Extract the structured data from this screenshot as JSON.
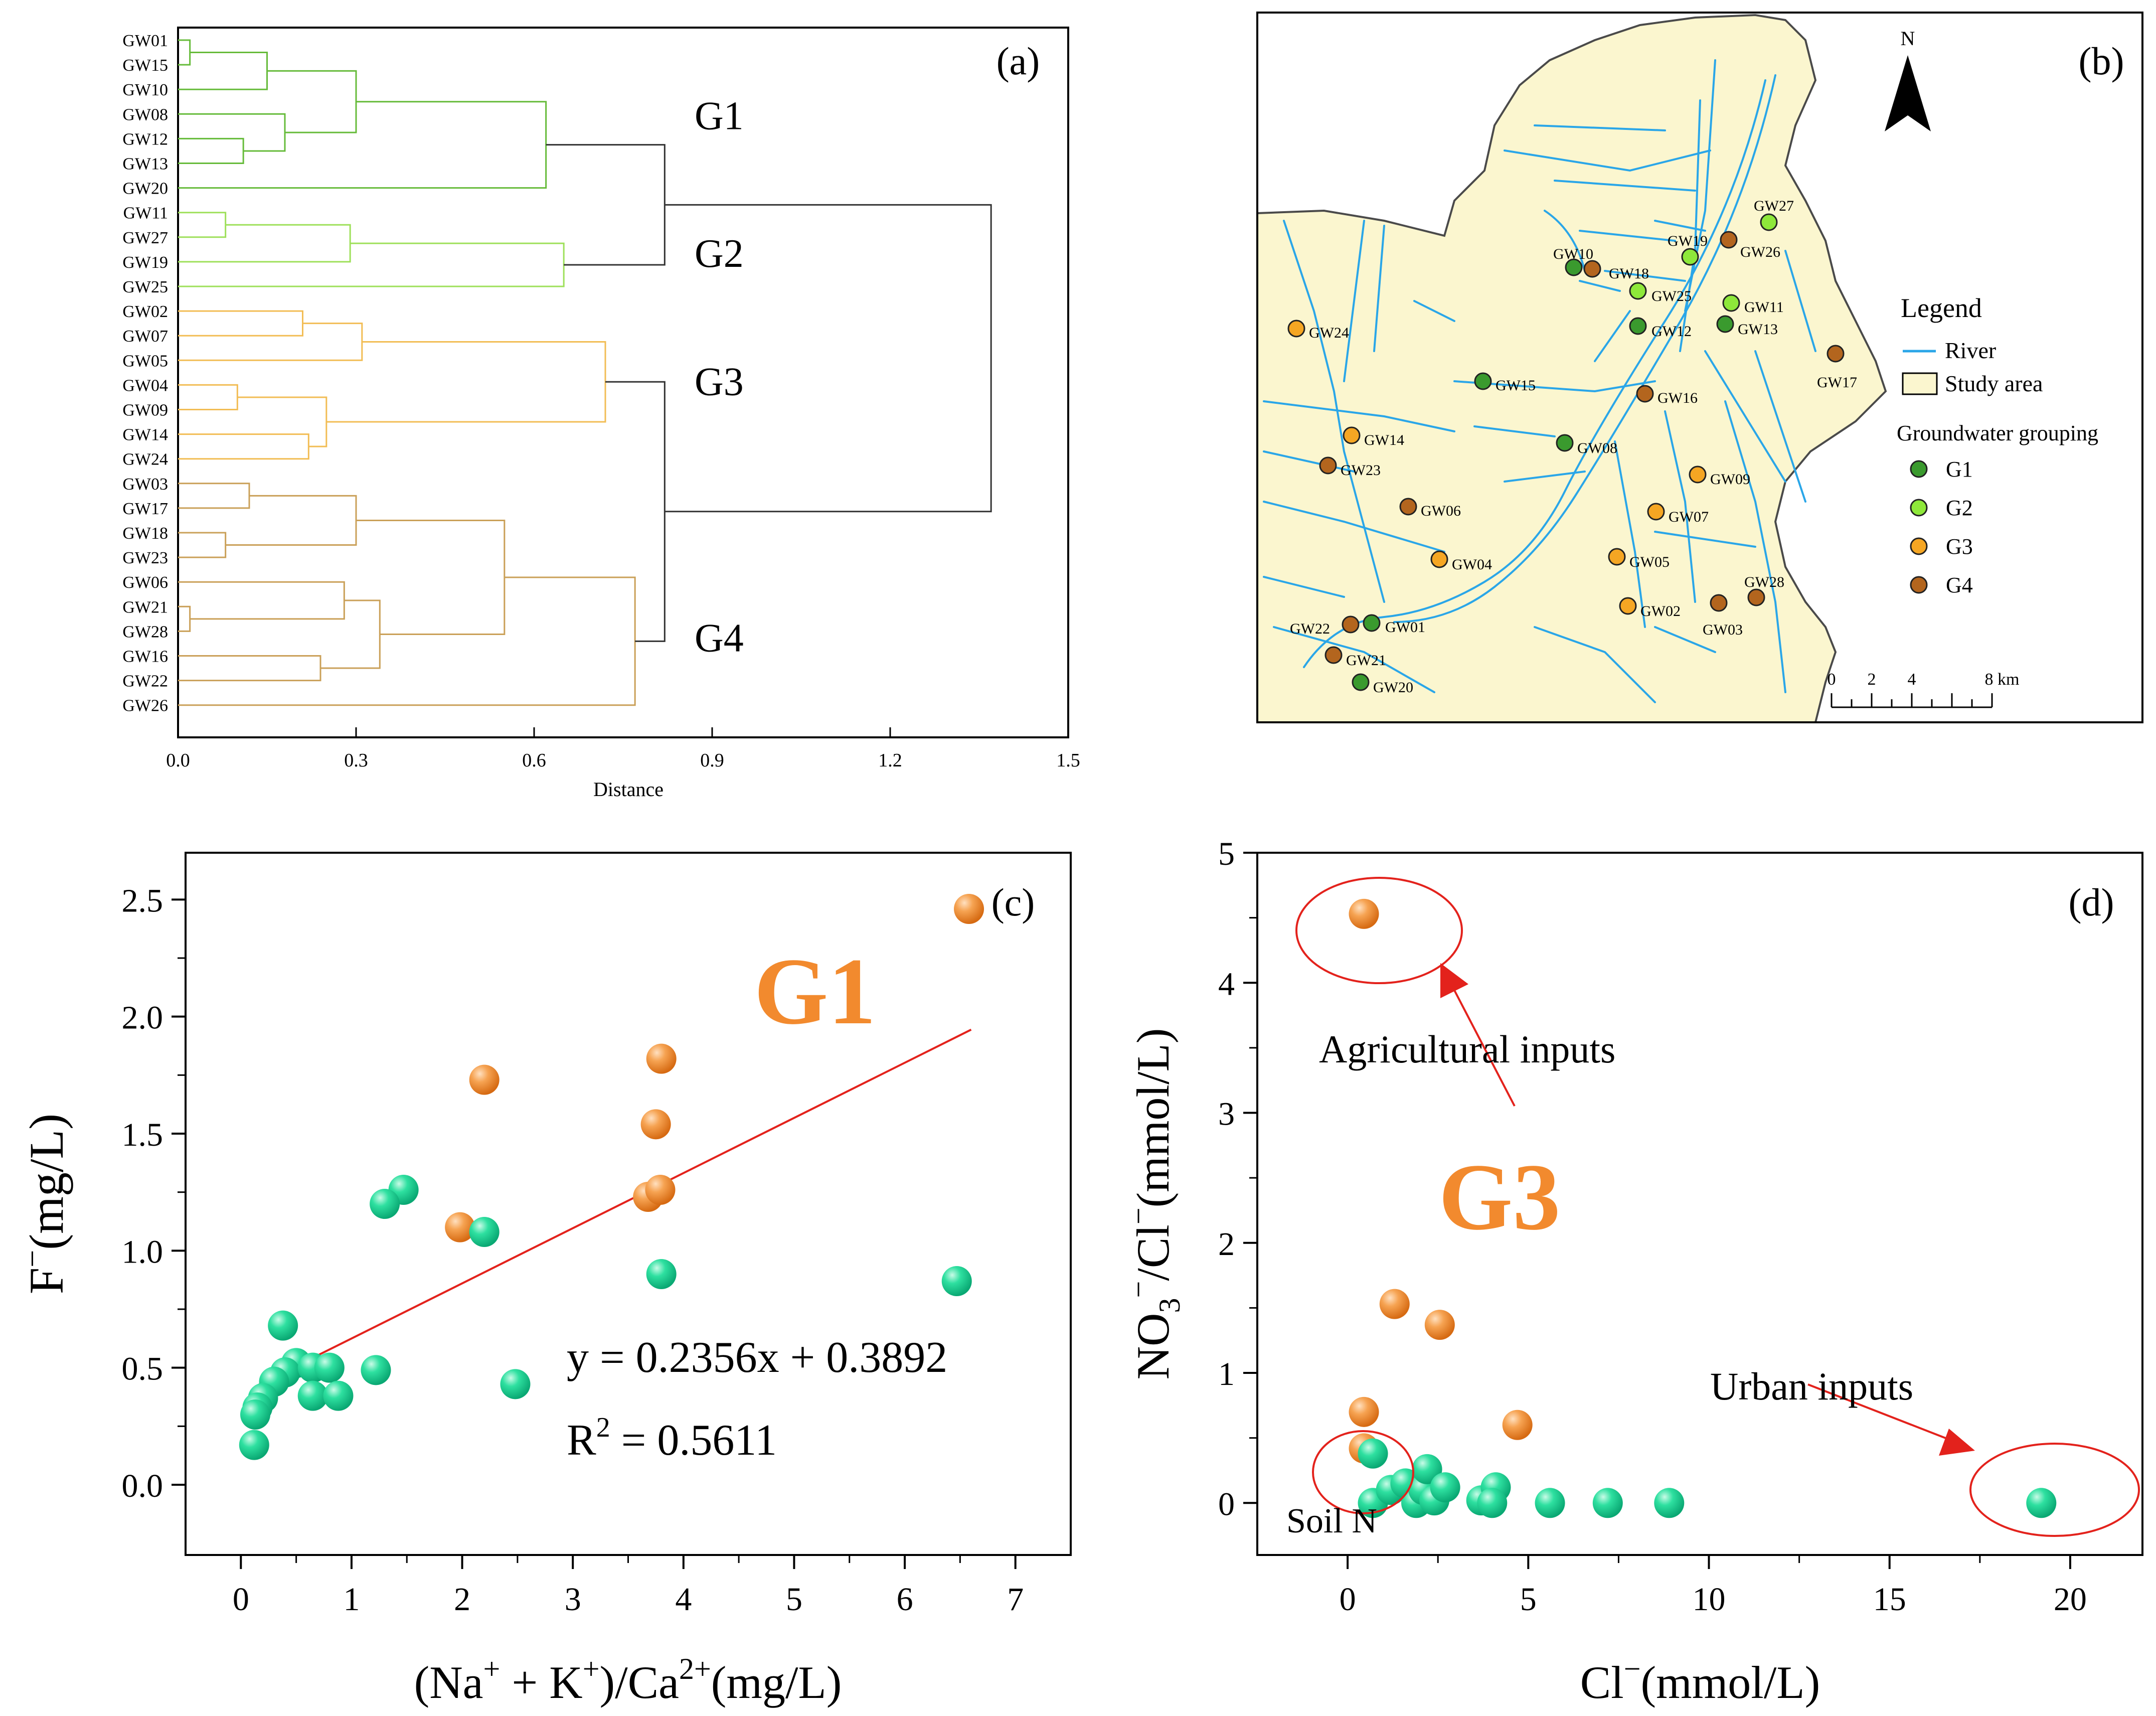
{
  "chart_data": [
    {
      "panel_label": "(a)",
      "type": "dendrogram",
      "xlabel": "Distance",
      "xlim": [
        0.0,
        1.5
      ],
      "x_ticks": [
        "0.0",
        "0.3",
        "0.6",
        "0.9",
        "1.2",
        "1.5"
      ],
      "leaves": [
        "GW01",
        "GW15",
        "GW10",
        "GW08",
        "GW12",
        "GW13",
        "GW20",
        "GW11",
        "GW27",
        "GW19",
        "GW25",
        "GW02",
        "GW07",
        "GW05",
        "GW04",
        "GW09",
        "GW14",
        "GW24",
        "GW03",
        "GW17",
        "GW18",
        "GW23",
        "GW06",
        "GW21",
        "GW28",
        "GW16",
        "GW22",
        "GW26"
      ],
      "group_labels": [
        {
          "label": "G1",
          "leaf_range": [
            0,
            6
          ],
          "color": "#66bb3a"
        },
        {
          "label": "G2",
          "leaf_range": [
            7,
            10
          ],
          "color": "#9ee05a"
        },
        {
          "label": "G3",
          "leaf_range": [
            11,
            17
          ],
          "color": "#f2bd55"
        },
        {
          "label": "G4",
          "leaf_range": [
            18,
            27
          ],
          "color": "#caa058"
        }
      ],
      "merges": [
        {
          "a": "L0",
          "b": "L1",
          "h": 0.02,
          "c": "#66bb3a"
        },
        {
          "a": "M0",
          "b": "L2",
          "h": 0.15,
          "c": "#66bb3a"
        },
        {
          "a": "L4",
          "b": "L5",
          "h": 0.11,
          "c": "#66bb3a"
        },
        {
          "a": "L3",
          "b": "M2",
          "h": 0.18,
          "c": "#66bb3a"
        },
        {
          "a": "M1",
          "b": "M3",
          "h": 0.3,
          "c": "#66bb3a"
        },
        {
          "a": "M4",
          "b": "L6",
          "h": 0.62,
          "c": "#66bb3a"
        },
        {
          "a": "L7",
          "b": "L8",
          "h": 0.08,
          "c": "#9ee05a"
        },
        {
          "a": "M6",
          "b": "L9",
          "h": 0.29,
          "c": "#9ee05a"
        },
        {
          "a": "M7",
          "b": "L10",
          "h": 0.65,
          "c": "#9ee05a"
        },
        {
          "a": "M5",
          "b": "M8",
          "h": 0.82,
          "c": "#333333"
        },
        {
          "a": "L11",
          "b": "L12",
          "h": 0.21,
          "c": "#f2bd55"
        },
        {
          "a": "M10",
          "b": "L13",
          "h": 0.31,
          "c": "#f2bd55"
        },
        {
          "a": "L14",
          "b": "L15",
          "h": 0.1,
          "c": "#f2bd55"
        },
        {
          "a": "L16",
          "b": "L17",
          "h": 0.22,
          "c": "#f2bd55"
        },
        {
          "a": "M12",
          "b": "M13",
          "h": 0.25,
          "c": "#f2bd55"
        },
        {
          "a": "M11",
          "b": "M14",
          "h": 0.72,
          "c": "#f2bd55"
        },
        {
          "a": "L18",
          "b": "L19",
          "h": 0.12,
          "c": "#caa058"
        },
        {
          "a": "L20",
          "b": "L21",
          "h": 0.08,
          "c": "#caa058"
        },
        {
          "a": "M16",
          "b": "M17",
          "h": 0.3,
          "c": "#caa058"
        },
        {
          "a": "L23",
          "b": "L24",
          "h": 0.02,
          "c": "#caa058"
        },
        {
          "a": "L22",
          "b": "M19",
          "h": 0.28,
          "c": "#caa058"
        },
        {
          "a": "L25",
          "b": "L26",
          "h": 0.24,
          "c": "#caa058"
        },
        {
          "a": "M20",
          "b": "M21",
          "h": 0.34,
          "c": "#caa058"
        },
        {
          "a": "M18",
          "b": "M22",
          "h": 0.55,
          "c": "#caa058"
        },
        {
          "a": "M23",
          "b": "L27",
          "h": 0.77,
          "c": "#caa058"
        },
        {
          "a": "M15",
          "b": "M24",
          "h": 0.82,
          "c": "#333333"
        },
        {
          "a": "M9",
          "b": "M25",
          "h": 1.37,
          "c": "#333333"
        }
      ]
    },
    {
      "panel_label": "(b)",
      "type": "map",
      "north_label": "N",
      "legend_title": "Legend",
      "legend_river": "River",
      "legend_area": "Study area",
      "legend_group_title": "Groundwater grouping",
      "group_colors": {
        "G1": "#3a9a2e",
        "G2": "#8ee83a",
        "G3": "#f5a623",
        "G4": "#b3651e"
      },
      "scale_ticks": [
        "0",
        "2",
        "4",
        "8 km"
      ],
      "wells": [
        {
          "id": "GW27",
          "group": "G2"
        },
        {
          "id": "GW19",
          "group": "G2"
        },
        {
          "id": "GW26",
          "group": "G4"
        },
        {
          "id": "GW10",
          "group": "G1"
        },
        {
          "id": "GW18",
          "group": "G4"
        },
        {
          "id": "GW25",
          "group": "G2"
        },
        {
          "id": "GW11",
          "group": "G2"
        },
        {
          "id": "GW12",
          "group": "G1"
        },
        {
          "id": "GW13",
          "group": "G1"
        },
        {
          "id": "GW24",
          "group": "G3"
        },
        {
          "id": "GW17",
          "group": "G4"
        },
        {
          "id": "GW15",
          "group": "G1"
        },
        {
          "id": "GW16",
          "group": "G4"
        },
        {
          "id": "GW14",
          "group": "G3"
        },
        {
          "id": "GW08",
          "group": "G1"
        },
        {
          "id": "GW23",
          "group": "G4"
        },
        {
          "id": "GW09",
          "group": "G3"
        },
        {
          "id": "GW06",
          "group": "G4"
        },
        {
          "id": "GW07",
          "group": "G3"
        },
        {
          "id": "GW04",
          "group": "G3"
        },
        {
          "id": "GW05",
          "group": "G3"
        },
        {
          "id": "GW28",
          "group": "G4"
        },
        {
          "id": "GW02",
          "group": "G3"
        },
        {
          "id": "GW03",
          "group": "G4"
        },
        {
          "id": "GW22",
          "group": "G4"
        },
        {
          "id": "GW01",
          "group": "G1"
        },
        {
          "id": "GW21",
          "group": "G4"
        },
        {
          "id": "GW20",
          "group": "G1"
        }
      ]
    },
    {
      "panel_label": "(c)",
      "type": "scatter",
      "title": "G1",
      "xlabel_prefix": "(Na",
      "xlabel_sup1": "+",
      "xlabel_mid": " + K",
      "xlabel_sup2": "+",
      "xlabel_mid2": ")/Ca",
      "xlabel_sup3": "2+",
      "xlabel_suffix": "(mg/L)",
      "ylabel_main": "F",
      "ylabel_sup": "−",
      "ylabel_suffix": "(mg/L)",
      "xlim": [
        -0.5,
        7.5
      ],
      "ylim": [
        -0.3,
        2.7
      ],
      "x_ticks": [
        0,
        1,
        2,
        3,
        4,
        5,
        6,
        7
      ],
      "y_ticks": [
        "0.0",
        "0.5",
        "1.0",
        "1.5",
        "2.0",
        "2.5"
      ],
      "equation": "y = 0.2356x + 0.3892",
      "r2_prefix": "R",
      "r2_sup": "2",
      "r2_suffix": " = 0.5611",
      "fit": {
        "slope": 0.2356,
        "intercept": 0.3892,
        "x_range": [
          0.13,
          6.6
        ]
      },
      "series": [
        {
          "color": "#f28a2e",
          "points": [
            [
              6.58,
              2.46
            ],
            [
              3.8,
              1.82
            ],
            [
              2.2,
              1.73
            ],
            [
              3.75,
              1.54
            ],
            [
              1.98,
              1.1
            ],
            [
              3.68,
              1.23
            ],
            [
              3.79,
              1.26
            ]
          ]
        },
        {
          "color": "#1ccf8f",
          "points": [
            [
              1.47,
              1.26
            ],
            [
              1.3,
              1.2
            ],
            [
              2.2,
              1.08
            ],
            [
              3.8,
              0.9
            ],
            [
              6.47,
              0.87
            ],
            [
              0.38,
              0.68
            ],
            [
              0.5,
              0.52
            ],
            [
              0.4,
              0.48
            ],
            [
              0.3,
              0.44
            ],
            [
              0.65,
              0.5
            ],
            [
              0.8,
              0.5
            ],
            [
              1.22,
              0.49
            ],
            [
              0.65,
              0.38
            ],
            [
              0.88,
              0.38
            ],
            [
              2.48,
              0.43
            ],
            [
              0.2,
              0.37
            ],
            [
              0.15,
              0.33
            ],
            [
              0.13,
              0.3
            ],
            [
              0.12,
              0.17
            ]
          ]
        }
      ]
    },
    {
      "panel_label": "(d)",
      "type": "scatter",
      "title": "G3",
      "xlabel_main": "Cl",
      "xlabel_sup": "−",
      "xlabel_suffix": "(mmol/L)",
      "ylabel_a": "NO",
      "ylabel_sub": "3",
      "ylabel_sup1": "−",
      "ylabel_b": "/Cl",
      "ylabel_sup2": "−",
      "ylabel_suffix": "(mmol/L)",
      "xlim": [
        -2.5,
        22
      ],
      "ylim": [
        -0.4,
        5
      ],
      "x_ticks": [
        0,
        5,
        10,
        15,
        20
      ],
      "y_ticks": [
        0,
        1,
        2,
        3,
        4,
        5
      ],
      "annotations": {
        "agricultural": "Agricultural inputs",
        "urban": "Urban inputs",
        "soil": "Soil N"
      },
      "series": [
        {
          "color": "#f28a2e",
          "points": [
            [
              0.45,
              4.53
            ],
            [
              1.3,
              1.53
            ],
            [
              2.55,
              1.37
            ],
            [
              0.45,
              0.7
            ],
            [
              0.45,
              0.42
            ],
            [
              4.7,
              0.6
            ]
          ]
        },
        {
          "color": "#1ccf8f",
          "points": [
            [
              0.7,
              0.38
            ],
            [
              0.7,
              0.0
            ],
            [
              1.2,
              0.1
            ],
            [
              1.6,
              0.15
            ],
            [
              1.9,
              0.0
            ],
            [
              2.1,
              0.1
            ],
            [
              2.2,
              0.26
            ],
            [
              2.4,
              0.02
            ],
            [
              2.7,
              0.12
            ],
            [
              3.7,
              0.02
            ],
            [
              4.1,
              0.12
            ],
            [
              4.0,
              0.0
            ],
            [
              5.6,
              0.0
            ],
            [
              7.2,
              0.0
            ],
            [
              8.9,
              0.0
            ],
            [
              19.2,
              0.0
            ]
          ]
        }
      ]
    }
  ]
}
